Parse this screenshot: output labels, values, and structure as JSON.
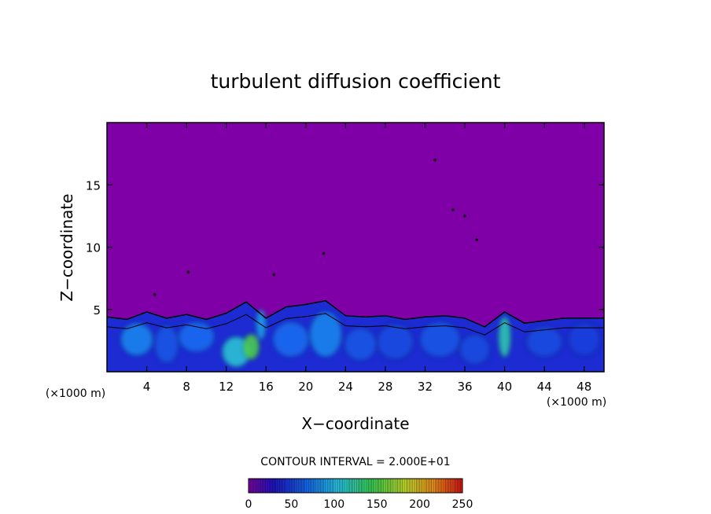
{
  "chart_data": {
    "type": "heatmap",
    "title": "turbulent diffusion coefficient",
    "xlabel": "X−coordinate",
    "ylabel": "Z−coordinate",
    "x_unit": "(×1000 m)",
    "x_unit_right": "(×1000 m)",
    "xlim": [
      0,
      50
    ],
    "ylim": [
      0,
      20
    ],
    "xticks": [
      4,
      8,
      12,
      16,
      20,
      24,
      28,
      32,
      36,
      40,
      44,
      48
    ],
    "yticks": [
      5,
      10,
      15
    ],
    "contour_interval_text": "CONTOUR INTERVAL = 2.000E+01",
    "colorbar": {
      "min": 0,
      "max": 250,
      "ticks": [
        0,
        50,
        100,
        150,
        200,
        250
      ],
      "levels": 125
    },
    "background_value": 0,
    "turbulent_layer_top": [
      {
        "x": 0,
        "z": 4.4
      },
      {
        "x": 2,
        "z": 4.2
      },
      {
        "x": 4,
        "z": 4.8
      },
      {
        "x": 6,
        "z": 4.3
      },
      {
        "x": 8,
        "z": 4.6
      },
      {
        "x": 10,
        "z": 4.2
      },
      {
        "x": 12,
        "z": 4.7
      },
      {
        "x": 14,
        "z": 5.6
      },
      {
        "x": 16,
        "z": 4.3
      },
      {
        "x": 18,
        "z": 5.2
      },
      {
        "x": 20,
        "z": 5.4
      },
      {
        "x": 22,
        "z": 5.7
      },
      {
        "x": 24,
        "z": 4.5
      },
      {
        "x": 26,
        "z": 4.4
      },
      {
        "x": 28,
        "z": 4.5
      },
      {
        "x": 30,
        "z": 4.2
      },
      {
        "x": 32,
        "z": 4.4
      },
      {
        "x": 34,
        "z": 4.5
      },
      {
        "x": 36,
        "z": 4.3
      },
      {
        "x": 38,
        "z": 3.6
      },
      {
        "x": 40,
        "z": 4.8
      },
      {
        "x": 42,
        "z": 3.9
      },
      {
        "x": 44,
        "z": 4.1
      },
      {
        "x": 46,
        "z": 4.3
      },
      {
        "x": 48,
        "z": 4.3
      },
      {
        "x": 50,
        "z": 4.3
      }
    ],
    "features": [
      {
        "x": 3.0,
        "z": 2.6,
        "rx": 1.6,
        "rz": 1.3,
        "value": 80
      },
      {
        "x": 6.0,
        "z": 2.2,
        "rx": 1.2,
        "rz": 1.5,
        "value": 60
      },
      {
        "x": 9.0,
        "z": 2.8,
        "rx": 1.8,
        "rz": 1.2,
        "value": 70
      },
      {
        "x": 13.0,
        "z": 1.6,
        "rx": 1.4,
        "rz": 1.2,
        "value": 110
      },
      {
        "x": 14.5,
        "z": 2.0,
        "rx": 0.8,
        "rz": 1.0,
        "value": 150
      },
      {
        "x": 15.5,
        "z": 3.8,
        "rx": 0.5,
        "rz": 1.2,
        "value": 90
      },
      {
        "x": 18.5,
        "z": 2.6,
        "rx": 1.8,
        "rz": 1.4,
        "value": 70
      },
      {
        "x": 22.0,
        "z": 3.0,
        "rx": 1.6,
        "rz": 1.8,
        "value": 80
      },
      {
        "x": 25.5,
        "z": 2.2,
        "rx": 1.6,
        "rz": 1.3,
        "value": 60
      },
      {
        "x": 29.0,
        "z": 2.4,
        "rx": 1.8,
        "rz": 1.4,
        "value": 55
      },
      {
        "x": 33.5,
        "z": 2.6,
        "rx": 2.0,
        "rz": 1.4,
        "value": 60
      },
      {
        "x": 37.0,
        "z": 1.8,
        "rx": 1.5,
        "rz": 1.2,
        "value": 55
      },
      {
        "x": 40.0,
        "z": 2.8,
        "rx": 0.6,
        "rz": 1.6,
        "value": 120
      },
      {
        "x": 44.0,
        "z": 2.4,
        "rx": 1.8,
        "rz": 1.2,
        "value": 55
      },
      {
        "x": 48.0,
        "z": 2.6,
        "rx": 1.6,
        "rz": 1.3,
        "value": 50
      }
    ],
    "scattered_points": [
      {
        "x": 33.0,
        "z": 17.0
      },
      {
        "x": 34.8,
        "z": 13.0
      },
      {
        "x": 36.0,
        "z": 12.5
      },
      {
        "x": 37.2,
        "z": 10.6
      },
      {
        "x": 8.2,
        "z": 8.0
      },
      {
        "x": 16.8,
        "z": 7.8
      },
      {
        "x": 21.8,
        "z": 9.5
      },
      {
        "x": 4.8,
        "z": 6.2
      }
    ]
  }
}
